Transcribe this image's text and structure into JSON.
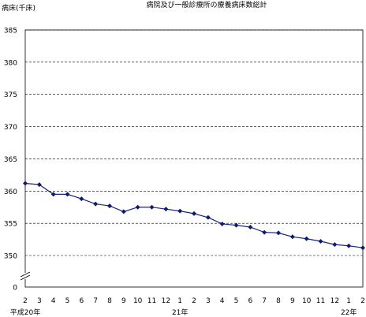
{
  "chart_data": {
    "type": "line",
    "title": "病院及び一般診療所の療養病床数総計",
    "ylabel": "病床(千床)",
    "ylim": [
      350,
      385
    ],
    "y_ticks": [
      "385",
      "380",
      "375",
      "370",
      "365",
      "360",
      "355",
      "350"
    ],
    "y_zero_label": "0",
    "y_axis_break": true,
    "grid": "horizontal dashed",
    "x_tick_labels": [
      "2",
      "3",
      "4",
      "5",
      "6",
      "7",
      "8",
      "9",
      "10",
      "11",
      "12",
      "1",
      "2",
      "3",
      "4",
      "5",
      "6",
      "7",
      "8",
      "9",
      "10",
      "11",
      "12",
      "1",
      "2"
    ],
    "year_labels": [
      {
        "text": "平成20年",
        "at_index": 0
      },
      {
        "text": "21年",
        "at_index": 11
      },
      {
        "text": "22年",
        "at_index": 23
      }
    ],
    "series": [
      {
        "values": [
          361.2,
          361.0,
          359.5,
          359.5,
          358.8,
          358.0,
          357.7,
          356.8,
          357.5,
          357.5,
          357.2,
          356.9,
          356.5,
          355.9,
          354.9,
          354.7,
          354.4,
          353.6,
          353.5,
          352.9,
          352.6,
          352.2,
          351.7,
          351.5,
          351.2
        ]
      }
    ],
    "colors": {
      "line": "#1a237e",
      "marker": "#0d1b6e",
      "grid": "#000000"
    }
  }
}
